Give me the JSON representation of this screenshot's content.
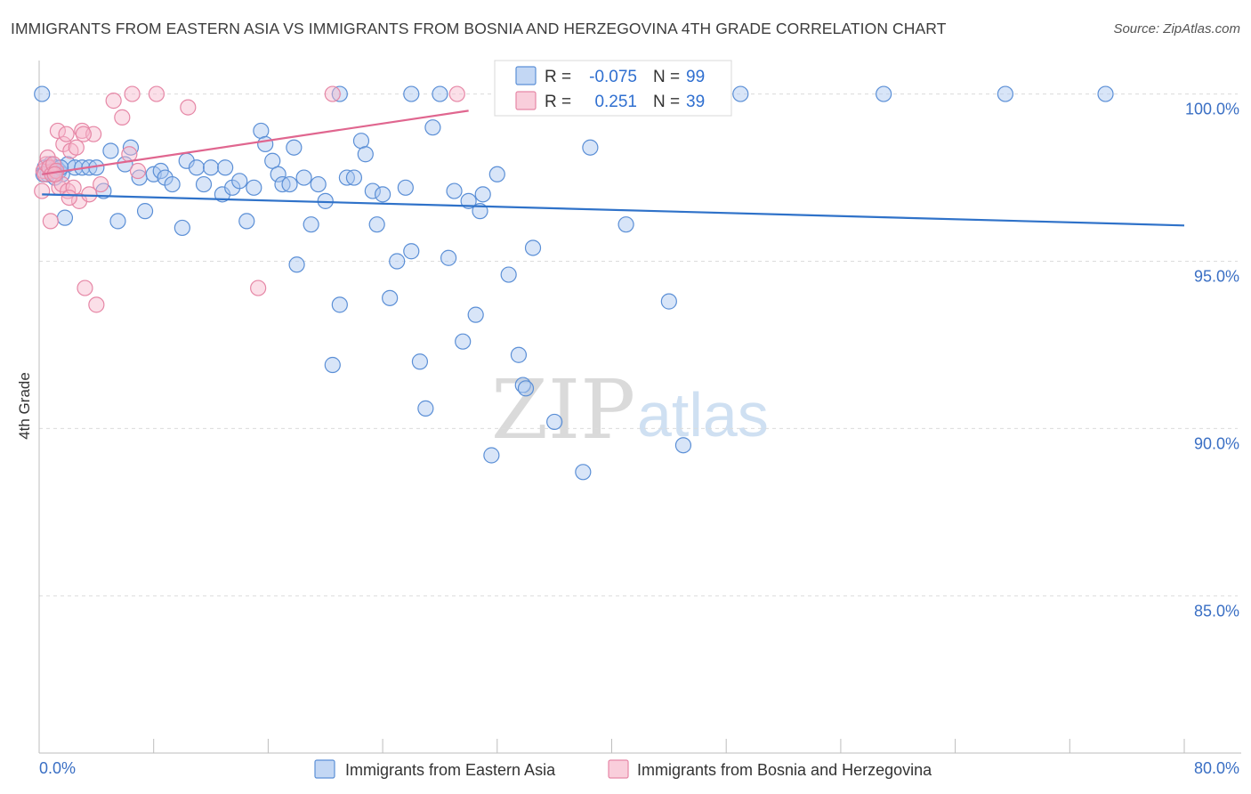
{
  "header": {
    "title": "IMMIGRANTS FROM EASTERN ASIA VS IMMIGRANTS FROM BOSNIA AND HERZEGOVINA 4TH GRADE CORRELATION CHART",
    "source": "Source: ZipAtlas.com"
  },
  "watermark": {
    "zip": "ZIP",
    "atlas": "atlas"
  },
  "stats": {
    "r_label": "R =",
    "n_label": "N =",
    "blue": {
      "r": "-0.075",
      "n": "99"
    },
    "pink": {
      "r": "0.251",
      "n": "39"
    }
  },
  "colors": {
    "blue_fill": "#a9c6ef",
    "blue_stroke": "#5b8fd6",
    "blue_line": "#2f72c9",
    "pink_fill": "#f7b9cc",
    "pink_stroke": "#e687a6",
    "pink_line": "#e0668f"
  },
  "chart_data": {
    "type": "scatter",
    "title": "IMMIGRANTS FROM EASTERN ASIA VS IMMIGRANTS FROM BOSNIA AND HERZEGOVINA 4TH GRADE CORRELATION CHART",
    "xlabel": "",
    "ylabel": "4th Grade",
    "xlim": [
      0,
      80
    ],
    "ylim": [
      80.3,
      101.0
    ],
    "x_tick_labels": [
      "0.0%",
      "80.0%"
    ],
    "y_ticks": [
      {
        "value": 100,
        "label": "100.0%"
      },
      {
        "value": 95,
        "label": "95.0%"
      },
      {
        "value": 90,
        "label": "90.0%"
      },
      {
        "value": 85,
        "label": "85.0%"
      }
    ],
    "grid": "horizontal dashed",
    "legend_position": "bottom-center",
    "series": [
      {
        "name": "Immigrants from Eastern Asia",
        "r": -0.075,
        "n": 99,
        "trend": {
          "x": [
            0.2,
            80
          ],
          "y": [
            97.0,
            96.07
          ]
        },
        "points": [
          [
            0.4,
            97.8
          ],
          [
            0.6,
            97.6
          ],
          [
            0.8,
            97.9
          ],
          [
            1.0,
            97.7
          ],
          [
            1.2,
            97.8
          ],
          [
            1.4,
            97.7
          ],
          [
            1.6,
            97.6
          ],
          [
            2.0,
            97.9
          ],
          [
            2.5,
            97.8
          ],
          [
            3.0,
            97.8
          ],
          [
            3.5,
            97.8
          ],
          [
            4.0,
            97.8
          ],
          [
            4.5,
            97.1
          ],
          [
            5.0,
            98.3
          ],
          [
            5.5,
            96.2
          ],
          [
            6.0,
            97.9
          ],
          [
            6.4,
            98.4
          ],
          [
            7.0,
            97.5
          ],
          [
            7.4,
            96.5
          ],
          [
            8.0,
            97.6
          ],
          [
            8.5,
            97.7
          ],
          [
            8.8,
            97.5
          ],
          [
            9.3,
            97.3
          ],
          [
            10.0,
            96.0
          ],
          [
            10.3,
            98.0
          ],
          [
            11.0,
            97.8
          ],
          [
            11.5,
            97.3
          ],
          [
            12.0,
            97.8
          ],
          [
            12.8,
            97.0
          ],
          [
            13.0,
            97.8
          ],
          [
            13.5,
            97.2
          ],
          [
            14.0,
            97.4
          ],
          [
            14.5,
            96.2
          ],
          [
            15.0,
            97.2
          ],
          [
            15.5,
            98.9
          ],
          [
            15.8,
            98.5
          ],
          [
            16.3,
            98.0
          ],
          [
            16.7,
            97.6
          ],
          [
            17.0,
            97.3
          ],
          [
            17.5,
            97.3
          ],
          [
            17.8,
            98.4
          ],
          [
            18.0,
            94.9
          ],
          [
            18.5,
            97.5
          ],
          [
            19.0,
            96.1
          ],
          [
            19.5,
            97.3
          ],
          [
            20.0,
            96.8
          ],
          [
            20.5,
            91.9
          ],
          [
            21.0,
            93.7
          ],
          [
            21.5,
            97.5
          ],
          [
            22.0,
            97.5
          ],
          [
            22.5,
            98.6
          ],
          [
            22.8,
            98.2
          ],
          [
            23.3,
            97.1
          ],
          [
            23.6,
            96.1
          ],
          [
            24.0,
            97.0
          ],
          [
            24.5,
            93.9
          ],
          [
            25.0,
            95.0
          ],
          [
            25.6,
            97.2
          ],
          [
            26.0,
            95.3
          ],
          [
            26.6,
            92.0
          ],
          [
            27.0,
            90.6
          ],
          [
            27.5,
            99.0
          ],
          [
            28.0,
            100.0
          ],
          [
            28.6,
            95.1
          ],
          [
            29.0,
            97.1
          ],
          [
            29.6,
            92.6
          ],
          [
            30.0,
            96.8
          ],
          [
            30.5,
            93.4
          ],
          [
            30.8,
            96.5
          ],
          [
            31.0,
            97.0
          ],
          [
            31.6,
            89.2
          ],
          [
            32.0,
            97.6
          ],
          [
            32.8,
            94.6
          ],
          [
            33.5,
            92.2
          ],
          [
            33.8,
            91.3
          ],
          [
            34.0,
            91.2
          ],
          [
            34.5,
            95.4
          ],
          [
            36.0,
            90.2
          ],
          [
            37.5,
            100.0
          ],
          [
            38.0,
            88.7
          ],
          [
            38.5,
            98.4
          ],
          [
            40.0,
            100.0
          ],
          [
            41.0,
            96.1
          ],
          [
            42.5,
            100.0
          ],
          [
            44.0,
            93.8
          ],
          [
            45.0,
            89.5
          ],
          [
            49.0,
            100.0
          ],
          [
            59.0,
            100.0
          ],
          [
            67.5,
            100.0
          ],
          [
            74.5,
            100.0
          ],
          [
            0.2,
            100.0
          ],
          [
            21.0,
            100.0
          ],
          [
            26.0,
            100.0
          ],
          [
            33.0,
            100.0
          ],
          [
            1.8,
            96.3
          ],
          [
            0.3,
            97.6
          ],
          [
            0.9,
            97.7
          ],
          [
            1.1,
            97.5
          ],
          [
            1.5,
            97.8
          ]
        ]
      },
      {
        "name": "Immigrants from Bosnia and Herzegovina",
        "r": 0.251,
        "n": 39,
        "trend": {
          "x": [
            0.2,
            30
          ],
          "y": [
            97.6,
            99.5
          ]
        },
        "points": [
          [
            0.2,
            97.1
          ],
          [
            0.3,
            97.7
          ],
          [
            0.4,
            97.6
          ],
          [
            0.5,
            97.9
          ],
          [
            0.6,
            98.1
          ],
          [
            0.7,
            97.8
          ],
          [
            0.9,
            97.6
          ],
          [
            1.0,
            97.9
          ],
          [
            1.2,
            97.7
          ],
          [
            1.3,
            98.9
          ],
          [
            1.4,
            97.2
          ],
          [
            1.6,
            97.3
          ],
          [
            1.7,
            98.5
          ],
          [
            1.9,
            98.8
          ],
          [
            2.0,
            97.1
          ],
          [
            2.2,
            98.3
          ],
          [
            2.4,
            97.2
          ],
          [
            2.6,
            98.4
          ],
          [
            2.8,
            96.8
          ],
          [
            3.0,
            98.9
          ],
          [
            3.2,
            94.2
          ],
          [
            3.5,
            97.0
          ],
          [
            3.8,
            98.8
          ],
          [
            4.0,
            93.7
          ],
          [
            4.3,
            97.3
          ],
          [
            5.2,
            99.8
          ],
          [
            5.8,
            99.3
          ],
          [
            6.3,
            98.2
          ],
          [
            6.5,
            100.0
          ],
          [
            6.9,
            97.7
          ],
          [
            8.2,
            100.0
          ],
          [
            10.4,
            99.6
          ],
          [
            15.3,
            94.2
          ],
          [
            20.5,
            100.0
          ],
          [
            29.2,
            100.0
          ],
          [
            0.8,
            96.2
          ],
          [
            1.1,
            97.6
          ],
          [
            2.1,
            96.9
          ],
          [
            3.1,
            98.8
          ]
        ]
      }
    ]
  },
  "legend": {
    "items": [
      {
        "label": "Immigrants from Eastern Asia"
      },
      {
        "label": "Immigrants from Bosnia and Herzegovina"
      }
    ]
  }
}
